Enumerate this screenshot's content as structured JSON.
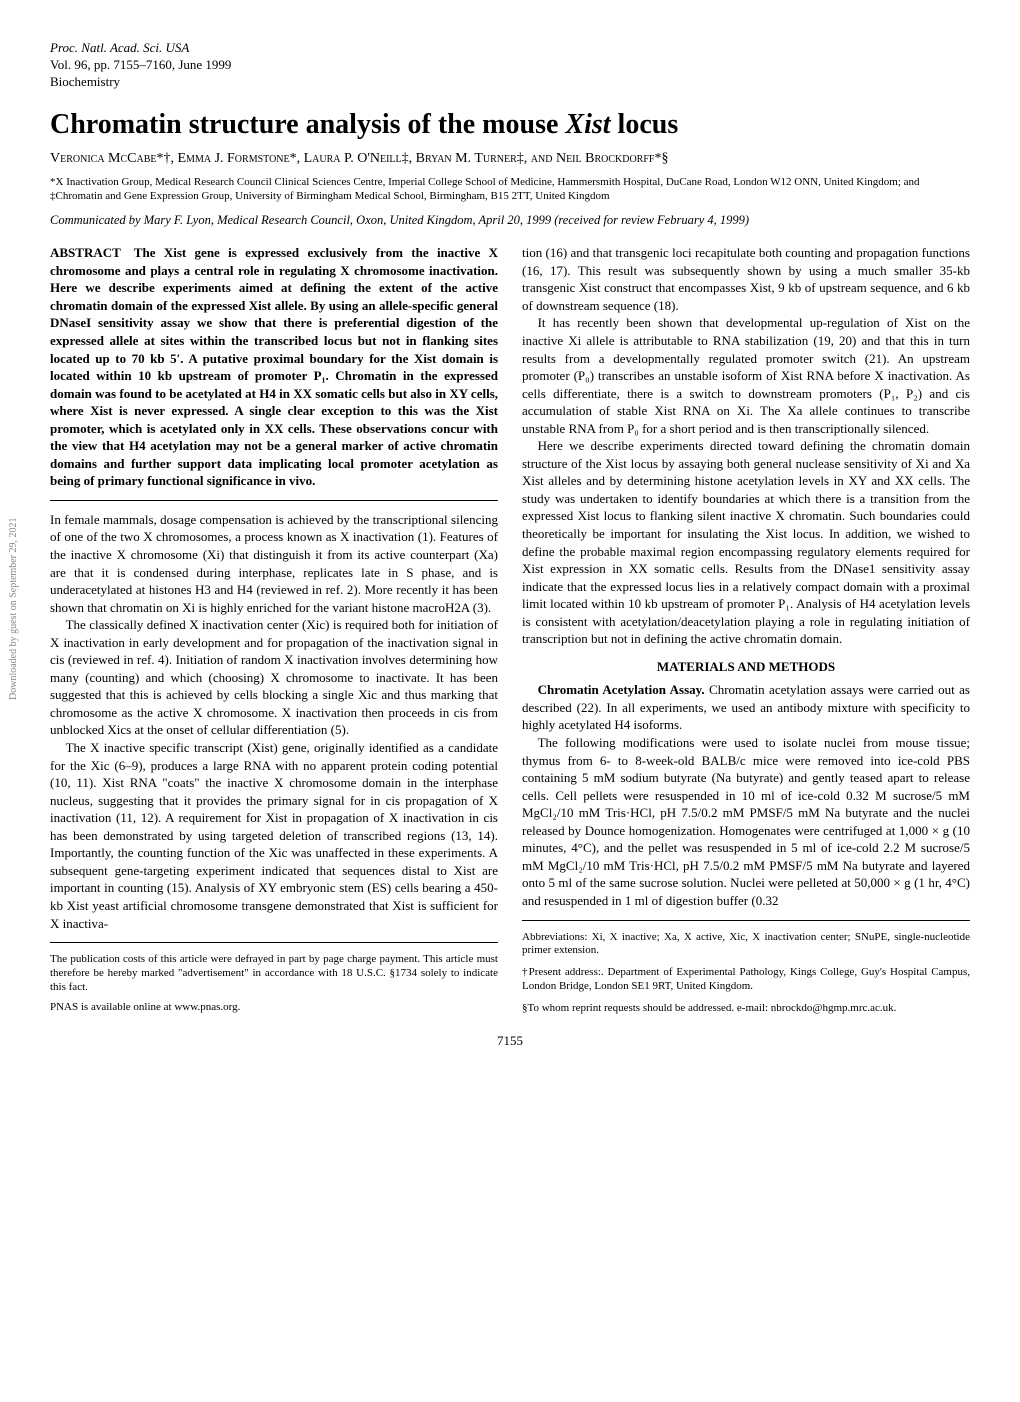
{
  "journal": {
    "name": "Proc. Natl. Acad. Sci. USA",
    "volume_line": "Vol. 96, pp. 7155–7160, June 1999",
    "category": "Biochemistry"
  },
  "title_pre": "Chromatin structure analysis of the mouse ",
  "title_italic": "Xist",
  "title_post": " locus",
  "authors": "Veronica McCabe*†, Emma J. Formstone*, Laura P. O'Neill‡, Bryan M. Turner‡, and Neil Brockdorff*§",
  "affiliations": "*X Inactivation Group, Medical Research Council Clinical Sciences Centre, Imperial College School of Medicine, Hammersmith Hospital, DuCane Road, London W12 ONN, United Kingdom; and ‡Chromatin and Gene Expression Group, University of Birmingham Medical School, Birmingham, B15 2TT, United Kingdom",
  "communicated": "Communicated by Mary F. Lyon, Medical Research Council, Oxon, United Kingdom, April 20, 1999 (received for review February 4, 1999)",
  "abstract_label": "ABSTRACT",
  "abstract_spacer": " ",
  "abstract": "The Xist gene is expressed exclusively from the inactive X chromosome and plays a central role in regulating X chromosome inactivation. Here we describe experiments aimed at defining the extent of the active chromatin domain of the expressed Xist allele. By using an allele-specific general DNaseI sensitivity assay we show that there is preferential digestion of the expressed allele at sites within the transcribed locus but not in flanking sites located up to 70 kb 5′. A putative proximal boundary for the Xist domain is located within 10 kb upstream of promoter P₁. Chromatin in the expressed domain was found to be acetylated at H4 in XX somatic cells but also in XY cells, where Xist is never expressed. A single clear exception to this was the Xist promoter, which is acetylated only in XX cells. These observations concur with the view that H4 acetylation may not be a general marker of active chromatin domains and further support data implicating local promoter acetylation as being of primary functional significance in vivo.",
  "body_para_1": "In female mammals, dosage compensation is achieved by the transcriptional silencing of one of the two X chromosomes, a process known as X inactivation (1). Features of the inactive X chromosome (Xi) that distinguish it from its active counterpart (Xa) are that it is condensed during interphase, replicates late in S phase, and is underacetylated at histones H3 and H4 (reviewed in ref. 2). More recently it has been shown that chromatin on Xi is highly enriched for the variant histone macroH2A (3).",
  "body_para_2": "The classically defined X inactivation center (Xic) is required both for initiation of X inactivation in early development and for propagation of the inactivation signal in cis (reviewed in ref. 4). Initiation of random X inactivation involves determining how many (counting) and which (choosing) X chromosome to inactivate. It has been suggested that this is achieved by cells blocking a single Xic and thus marking that chromosome as the active X chromosome. X inactivation then proceeds in cis from unblocked Xics at the onset of cellular differentiation (5).",
  "body_para_3": "The X inactive specific transcript (Xist) gene, originally identified as a candidate for the Xic (6–9), produces a large RNA with no apparent protein coding potential (10, 11). Xist RNA \"coats\" the inactive X chromosome domain in the interphase nucleus, suggesting that it provides the primary signal for in cis propagation of X inactivation (11, 12). A requirement for Xist in propagation of X inactivation in cis has been demonstrated by using targeted deletion of transcribed regions (13, 14). Importantly, the counting function of the Xic was unaffected in these experiments. A subsequent gene-targeting experiment indicated that sequences distal to Xist are important in counting (15). Analysis of XY embryonic stem (ES) cells bearing a 450-kb Xist yeast artificial chromosome transgene demonstrated that Xist is sufficient for X inactiva-",
  "pub_costs": "The publication costs of this article were defrayed in part by page charge payment. This article must therefore be hereby marked \"advertisement\" in accordance with 18 U.S.C. §1734 solely to indicate this fact.",
  "pnas_online": "PNAS is available online at www.pnas.org.",
  "body_para_4": "tion (16) and that transgenic loci recapitulate both counting and propagation functions (16, 17). This result was subsequently shown by using a much smaller 35-kb transgenic Xist construct that encompasses Xist, 9 kb of upstream sequence, and 6 kb of downstream sequence (18).",
  "body_para_5": "It has recently been shown that developmental up-regulation of Xist on the inactive Xi allele is attributable to RNA stabilization (19, 20) and that this in turn results from a developmentally regulated promoter switch (21). An upstream promoter (P₀) transcribes an unstable isoform of Xist RNA before X inactivation. As cells differentiate, there is a switch to downstream promoters (P₁, P₂) and cis accumulation of stable Xist RNA on Xi. The Xa allele continues to transcribe unstable RNA from P₀ for a short period and is then transcriptionally silenced.",
  "body_para_6": "Here we describe experiments directed toward defining the chromatin domain structure of the Xist locus by assaying both general nuclease sensitivity of Xi and Xa Xist alleles and by determining histone acetylation levels in XY and XX cells. The study was undertaken to identify boundaries at which there is a transition from the expressed Xist locus to flanking silent inactive X chromatin. Such boundaries could theoretically be important for insulating the Xist locus. In addition, we wished to define the probable maximal region encompassing regulatory elements required for Xist expression in XX somatic cells. Results from the DNase1 sensitivity assay indicate that the expressed locus lies in a relatively compact domain with a proximal limit located within 10 kb upstream of promoter P₁. Analysis of H4 acetylation levels is consistent with acetylation/deacetylation playing a role in regulating initiation of transcription but not in defining the active chromatin domain.",
  "section_methods": "MATERIALS AND METHODS",
  "methods_intro_bold": "Chromatin Acetylation Assay.",
  "methods_intro_rest": " Chromatin acetylation assays were carried out as described (22). In all experiments, we used an antibody mixture with specificity to highly acetylated H4 isoforms.",
  "methods_para_2": "The following modifications were used to isolate nuclei from mouse tissue; thymus from 6- to 8-week-old BALB/c mice were removed into ice-cold PBS containing 5 mM sodium butyrate (Na butyrate) and gently teased apart to release cells. Cell pellets were resuspended in 10 ml of ice-cold 0.32 M sucrose/5 mM MgCl₂/10 mM Tris·HCl, pH 7.5/0.2 mM PMSF/5 mM Na butyrate and the nuclei released by Dounce homogenization. Homogenates were centrifuged at 1,000 × g (10 minutes, 4°C), and the pellet was resuspended in 5 ml of ice-cold 2.2 M sucrose/5 mM MgCl₂/10 mM Tris·HCl, pH 7.5/0.2 mM PMSF/5 mM Na butyrate and layered onto 5 ml of the same sucrose solution. Nuclei were pelleted at 50,000 × g (1 hr, 4°C) and resuspended in 1 ml of digestion buffer (0.32",
  "abbrev_note": "Abbreviations: Xi, X inactive; Xa, X active, Xic, X inactivation center; SNuPE, single-nucleotide primer extension.",
  "dagger_note": "†Present address:. Department of Experimental Pathology, Kings College, Guy's Hospital Campus, London Bridge, London SE1 9RT, United Kingdom.",
  "section_note": "§To whom reprint requests should be addressed. e-mail: nbrockdo@hgmp.mrc.ac.uk.",
  "page_number": "7155",
  "vertical_note": "Downloaded by guest on September 29, 2021"
}
